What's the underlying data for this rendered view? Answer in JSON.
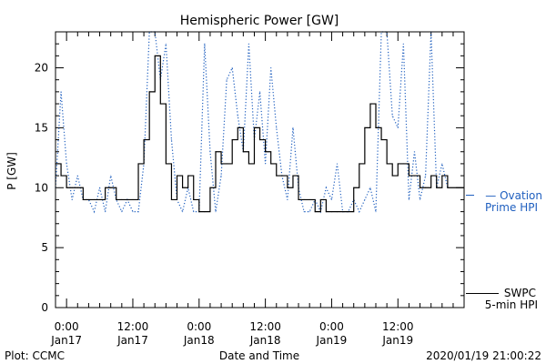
{
  "chart_data": {
    "type": "line",
    "title": "Hemispheric Power [GW]",
    "ylabel": "P [GW]",
    "xlabel": "Date and Time",
    "ylim": [
      0,
      23
    ],
    "yticks": [
      0,
      5,
      10,
      15,
      20
    ],
    "xlim": [
      "2020-01-16T22:00",
      "2020-01-19T23:59"
    ],
    "xticks": [
      {
        "time": "2020-01-17T00:00",
        "top": "0:00",
        "bottom": "Jan17"
      },
      {
        "time": "2020-01-17T12:00",
        "top": "12:00",
        "bottom": "Jan17"
      },
      {
        "time": "2020-01-18T00:00",
        "top": "0:00",
        "bottom": "Jan18"
      },
      {
        "time": "2020-01-18T12:00",
        "top": "12:00",
        "bottom": "Jan18"
      },
      {
        "time": "2020-01-19T00:00",
        "top": "0:00",
        "bottom": "Jan19"
      },
      {
        "time": "2020-01-19T12:00",
        "top": "12:00",
        "bottom": "Jan19"
      }
    ],
    "grid": false,
    "legend_placement": "right",
    "series": [
      {
        "name": "Ovation Prime HPI",
        "legend_lines": [
          "— Ovation",
          "Prime HPI"
        ],
        "color": "#1f5fbf",
        "style": "dotted",
        "x": [
          "2020-01-16T22:00",
          "2020-01-16T23:00",
          "2020-01-17T00:00",
          "2020-01-17T01:00",
          "2020-01-17T02:00",
          "2020-01-17T03:00",
          "2020-01-17T04:00",
          "2020-01-17T05:00",
          "2020-01-17T06:00",
          "2020-01-17T07:00",
          "2020-01-17T08:00",
          "2020-01-17T09:00",
          "2020-01-17T10:00",
          "2020-01-17T11:00",
          "2020-01-17T12:00",
          "2020-01-17T13:00",
          "2020-01-17T14:00",
          "2020-01-17T15:00",
          "2020-01-17T16:00",
          "2020-01-17T17:00",
          "2020-01-17T18:00",
          "2020-01-17T19:00",
          "2020-01-17T20:00",
          "2020-01-17T21:00",
          "2020-01-17T22:00",
          "2020-01-17T23:00",
          "2020-01-18T00:00",
          "2020-01-18T01:00",
          "2020-01-18T02:00",
          "2020-01-18T03:00",
          "2020-01-18T04:00",
          "2020-01-18T05:00",
          "2020-01-18T06:00",
          "2020-01-18T07:00",
          "2020-01-18T08:00",
          "2020-01-18T09:00",
          "2020-01-18T10:00",
          "2020-01-18T11:00",
          "2020-01-18T12:00",
          "2020-01-18T13:00",
          "2020-01-18T14:00",
          "2020-01-18T15:00",
          "2020-01-18T16:00",
          "2020-01-18T17:00",
          "2020-01-18T18:00",
          "2020-01-18T19:00",
          "2020-01-18T20:00",
          "2020-01-18T21:00",
          "2020-01-18T22:00",
          "2020-01-18T23:00",
          "2020-01-19T00:00",
          "2020-01-19T01:00",
          "2020-01-19T02:00",
          "2020-01-19T03:00",
          "2020-01-19T04:00",
          "2020-01-19T05:00",
          "2020-01-19T06:00",
          "2020-01-19T07:00",
          "2020-01-19T08:00",
          "2020-01-19T09:00",
          "2020-01-19T10:00",
          "2020-01-19T11:00",
          "2020-01-19T12:00",
          "2020-01-19T13:00",
          "2020-01-19T14:00",
          "2020-01-19T15:00",
          "2020-01-19T16:00",
          "2020-01-19T17:00",
          "2020-01-19T18:00",
          "2020-01-19T19:00",
          "2020-01-19T20:00",
          "2020-01-19T21:00"
        ],
        "y": [
          10,
          18,
          12,
          9,
          11,
          9,
          9,
          8,
          10,
          8,
          11,
          9,
          8,
          9,
          8,
          8,
          12,
          23,
          23,
          19,
          22,
          14,
          9,
          8,
          10,
          8,
          8,
          22,
          13,
          8,
          11,
          19,
          20,
          16,
          13,
          22,
          14,
          18,
          12,
          20,
          15,
          11,
          9,
          15,
          10,
          8,
          8,
          9,
          8,
          10,
          9,
          12,
          8,
          8,
          9,
          8,
          9,
          10,
          8,
          23,
          23,
          16,
          15,
          22,
          9,
          13,
          9,
          11,
          23,
          10,
          12,
          10
        ]
      },
      {
        "name": "SWPC 5-min HPI",
        "legend_lines": [
          "SWPC",
          "5-min HPI"
        ],
        "color": "#000000",
        "style": "solid",
        "x": [
          "2020-01-16T22:00",
          "2020-01-16T23:00",
          "2020-01-17T00:00",
          "2020-01-17T01:00",
          "2020-01-17T02:00",
          "2020-01-17T03:00",
          "2020-01-17T04:00",
          "2020-01-17T05:00",
          "2020-01-17T06:00",
          "2020-01-17T07:00",
          "2020-01-17T08:00",
          "2020-01-17T09:00",
          "2020-01-17T10:00",
          "2020-01-17T11:00",
          "2020-01-17T12:00",
          "2020-01-17T13:00",
          "2020-01-17T14:00",
          "2020-01-17T15:00",
          "2020-01-17T16:00",
          "2020-01-17T17:00",
          "2020-01-17T18:00",
          "2020-01-17T19:00",
          "2020-01-17T20:00",
          "2020-01-17T21:00",
          "2020-01-17T22:00",
          "2020-01-17T23:00",
          "2020-01-18T00:00",
          "2020-01-18T01:00",
          "2020-01-18T02:00",
          "2020-01-18T03:00",
          "2020-01-18T04:00",
          "2020-01-18T05:00",
          "2020-01-18T06:00",
          "2020-01-18T07:00",
          "2020-01-18T08:00",
          "2020-01-18T09:00",
          "2020-01-18T10:00",
          "2020-01-18T11:00",
          "2020-01-18T12:00",
          "2020-01-18T13:00",
          "2020-01-18T14:00",
          "2020-01-18T15:00",
          "2020-01-18T16:00",
          "2020-01-18T17:00",
          "2020-01-18T18:00",
          "2020-01-18T19:00",
          "2020-01-18T20:00",
          "2020-01-18T21:00",
          "2020-01-18T22:00",
          "2020-01-18T23:00",
          "2020-01-19T00:00",
          "2020-01-19T01:00",
          "2020-01-19T02:00",
          "2020-01-19T03:00",
          "2020-01-19T04:00",
          "2020-01-19T05:00",
          "2020-01-19T06:00",
          "2020-01-19T07:00",
          "2020-01-19T08:00",
          "2020-01-19T09:00",
          "2020-01-19T10:00",
          "2020-01-19T11:00",
          "2020-01-19T12:00",
          "2020-01-19T13:00",
          "2020-01-19T14:00",
          "2020-01-19T15:00",
          "2020-01-19T16:00",
          "2020-01-19T17:00",
          "2020-01-19T18:00",
          "2020-01-19T19:00",
          "2020-01-19T20:00",
          "2020-01-19T21:00"
        ],
        "y": [
          12,
          11,
          10,
          10,
          10,
          9,
          9,
          9,
          9,
          10,
          10,
          9,
          9,
          9,
          9,
          12,
          14,
          18,
          21,
          17,
          12,
          9,
          11,
          10,
          11,
          9,
          8,
          8,
          10,
          13,
          12,
          12,
          14,
          15,
          13,
          12,
          15,
          14,
          13,
          12,
          11,
          11,
          10,
          11,
          9,
          9,
          9,
          8,
          9,
          8,
          8,
          8,
          8,
          8,
          10,
          12,
          15,
          17,
          15,
          14,
          12,
          11,
          12,
          12,
          11,
          11,
          10,
          10,
          11,
          10,
          11,
          10
        ]
      }
    ]
  },
  "footer": {
    "plot_credit": "Plot: CCMC",
    "timestamp": "2020/01/19 21:00:22"
  }
}
